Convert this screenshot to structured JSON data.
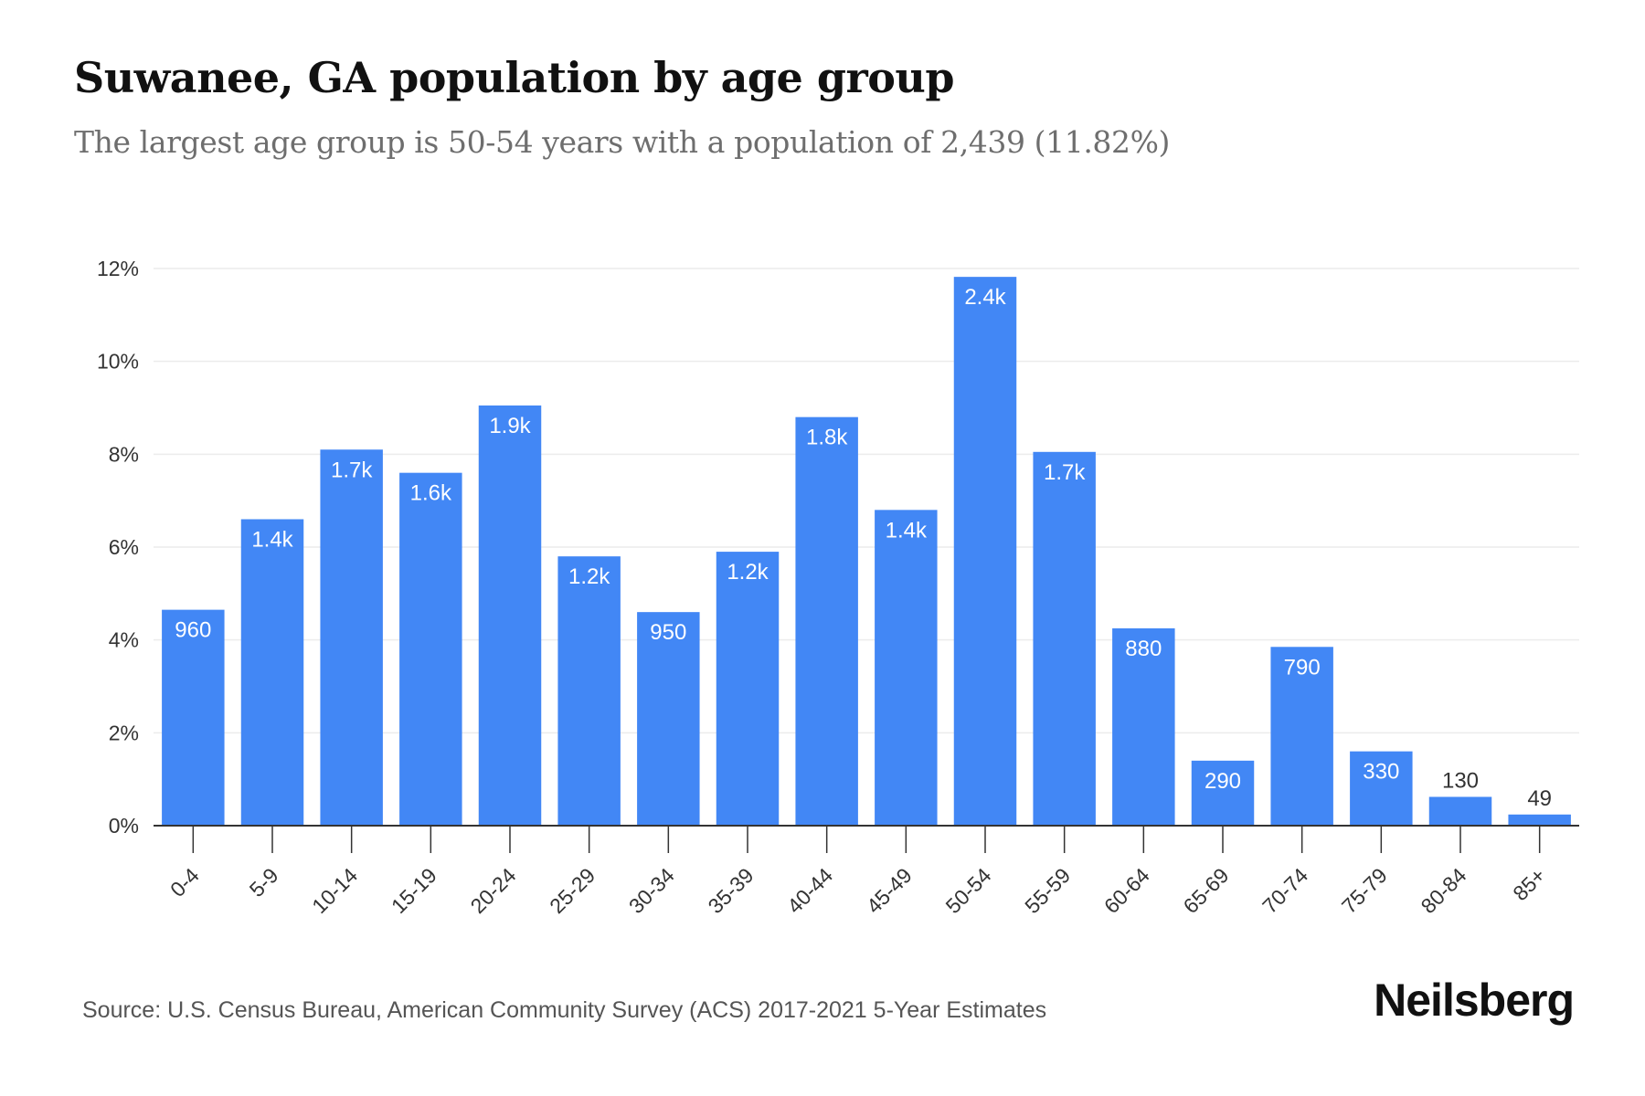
{
  "chart_data": {
    "type": "bar",
    "title": "Suwanee, GA population by age group",
    "subtitle": "The largest age group is 50-54 years with a population of 2,439 (11.82%)",
    "xlabel": "",
    "ylabel": "",
    "ylim": [
      0,
      12
    ],
    "y_ticks": [
      "0%",
      "2%",
      "4%",
      "6%",
      "8%",
      "10%",
      "12%"
    ],
    "y_tick_values": [
      0,
      2,
      4,
      6,
      8,
      10,
      12
    ],
    "grid": true,
    "categories": [
      "0-4",
      "5-9",
      "10-14",
      "15-19",
      "20-24",
      "25-29",
      "30-34",
      "35-39",
      "40-44",
      "45-49",
      "50-54",
      "55-59",
      "60-64",
      "65-69",
      "70-74",
      "75-79",
      "80-84",
      "85+"
    ],
    "values": [
      4.65,
      6.6,
      8.1,
      7.6,
      9.05,
      5.8,
      4.6,
      5.9,
      8.8,
      6.8,
      11.82,
      8.05,
      4.25,
      1.4,
      3.85,
      1.6,
      0.62,
      0.24
    ],
    "labels": [
      "960",
      "1.4k",
      "1.7k",
      "1.6k",
      "1.9k",
      "1.2k",
      "950",
      "1.2k",
      "1.8k",
      "1.4k",
      "2.4k",
      "1.7k",
      "880",
      "290",
      "790",
      "330",
      "130",
      "49"
    ],
    "bar_color": "#4287f5"
  },
  "footer": {
    "source": "Source: U.S. Census Bureau, American Community Survey (ACS) 2017-2021 5-Year Estimates",
    "brand": "Neilsberg"
  }
}
